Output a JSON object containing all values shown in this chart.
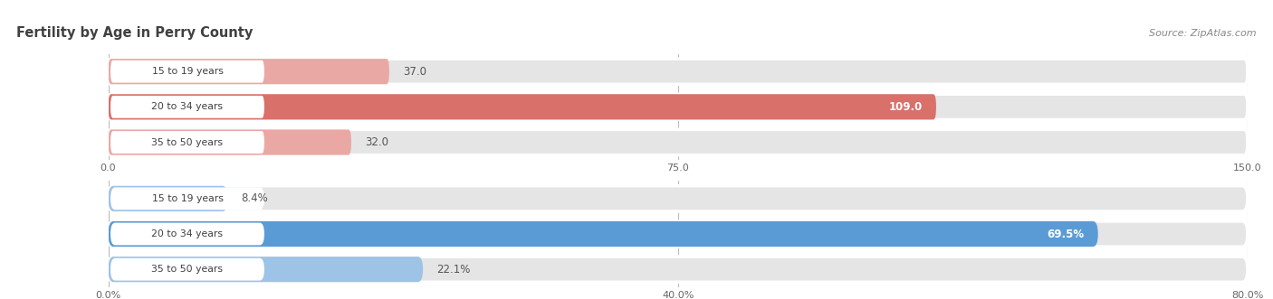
{
  "title": "Fertility by Age in Perry County",
  "source": "Source: ZipAtlas.com",
  "top_chart": {
    "categories": [
      "15 to 19 years",
      "20 to 34 years",
      "35 to 50 years"
    ],
    "values": [
      37.0,
      109.0,
      32.0
    ],
    "xlim": [
      0,
      150
    ],
    "xticks": [
      0.0,
      75.0,
      150.0
    ],
    "xtick_labels": [
      "0.0",
      "75.0",
      "150.0"
    ],
    "bar_color_main": "#D9706A",
    "bar_color_light": "#EAA8A5",
    "bar_bg_color": "#E5E5E5"
  },
  "bottom_chart": {
    "categories": [
      "15 to 19 years",
      "20 to 34 years",
      "35 to 50 years"
    ],
    "values": [
      8.4,
      69.5,
      22.1
    ],
    "xlim": [
      0,
      80
    ],
    "xticks": [
      0.0,
      40.0,
      80.0
    ],
    "xtick_labels": [
      "0.0%",
      "40.0%",
      "80.0%"
    ],
    "bar_color_main": "#5B9BD5",
    "bar_color_light": "#9DC3E6",
    "bar_bg_color": "#E5E5E5"
  },
  "fig_bg": "#FFFFFF",
  "title_color": "#404040",
  "source_color": "#888888",
  "label_text_color": "#404040",
  "value_text_color_outside": "#555555",
  "value_text_color_inside": "#FFFFFF"
}
